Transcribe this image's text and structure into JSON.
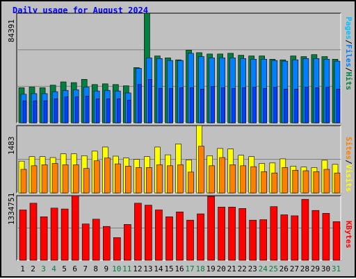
{
  "title": "Daily usage for August 2024",
  "colors": {
    "background": "#c0c0c0",
    "title": "#0000ff",
    "hits": "#008040",
    "files": "#0080ff",
    "pages": "#00c0ff",
    "visits": "#ffff00",
    "sites": "#ff8000",
    "kbytes": "#ff0000"
  },
  "chart_data": [
    {
      "type": "bar",
      "title": "Daily usage for August 2024",
      "xlabel": "",
      "ylabel_parts": [
        "Pages",
        "/",
        "Files",
        "/",
        "Hits"
      ],
      "ymax_label": "84391",
      "ylim": [
        0,
        84391
      ],
      "grid": true,
      "categories": [
        "1",
        "2",
        "3",
        "4",
        "5",
        "6",
        "7",
        "8",
        "9",
        "10",
        "11",
        "12",
        "13",
        "14",
        "15",
        "16",
        "17",
        "18",
        "19",
        "20",
        "21",
        "22",
        "23",
        "24",
        "25",
        "26",
        "27",
        "28",
        "29",
        "30",
        "31"
      ],
      "weekend_days": [
        "3",
        "4",
        "10",
        "11",
        "17",
        "18",
        "24",
        "25",
        "31"
      ],
      "series": [
        {
          "name": "Hits",
          "values": [
            27000,
            27500,
            27000,
            29000,
            31500,
            31000,
            33500,
            29500,
            30000,
            29500,
            28500,
            42500,
            84391,
            51500,
            50000,
            48500,
            56000,
            54000,
            53000,
            53000,
            53500,
            52000,
            51500,
            51500,
            49000,
            48500,
            51500,
            51000,
            52500,
            51000,
            49000
          ]
        },
        {
          "name": "Files",
          "values": [
            22000,
            22500,
            22500,
            24000,
            25000,
            25500,
            27500,
            24500,
            25000,
            24500,
            23000,
            42000,
            50000,
            49500,
            48000,
            48000,
            53500,
            51000,
            50000,
            50000,
            50000,
            49500,
            49000,
            49000,
            48000,
            47500,
            48500,
            49500,
            49500,
            49000,
            47500
          ]
        },
        {
          "name": "Pages",
          "values": [
            17000,
            17000,
            17000,
            18500,
            20000,
            20000,
            20500,
            18500,
            18500,
            18500,
            17500,
            29500,
            33500,
            26500,
            26500,
            27000,
            27000,
            26000,
            28000,
            27000,
            26500,
            27000,
            27500,
            26500,
            27500,
            26000,
            26000,
            27500,
            27000,
            27500,
            26000
          ]
        }
      ]
    },
    {
      "type": "bar",
      "ylabel_parts": [
        "Sites",
        "/",
        "Visits"
      ],
      "ymax_label": "1483",
      "ylim": [
        0,
        1483
      ],
      "grid": true,
      "categories": [
        "1",
        "2",
        "3",
        "4",
        "5",
        "6",
        "7",
        "8",
        "9",
        "10",
        "11",
        "12",
        "13",
        "14",
        "15",
        "16",
        "17",
        "18",
        "19",
        "20",
        "21",
        "22",
        "23",
        "24",
        "25",
        "26",
        "27",
        "28",
        "29",
        "30",
        "31"
      ],
      "series": [
        {
          "name": "Visits",
          "values": [
            700,
            800,
            800,
            780,
            860,
            860,
            820,
            920,
            1010,
            810,
            770,
            740,
            800,
            1010,
            840,
            1080,
            730,
            1483,
            820,
            980,
            970,
            830,
            800,
            650,
            660,
            750,
            590,
            570,
            560,
            720,
            630
          ]
        },
        {
          "name": "Sites",
          "values": [
            520,
            600,
            620,
            650,
            620,
            620,
            540,
            710,
            770,
            640,
            590,
            560,
            560,
            620,
            600,
            620,
            460,
            1030,
            600,
            780,
            620,
            600,
            580,
            470,
            440,
            560,
            500,
            490,
            470,
            520,
            440
          ]
        }
      ]
    },
    {
      "type": "bar",
      "ylabel_parts": [
        "KBytes"
      ],
      "ymax_label": "1334751",
      "ylim": [
        0,
        1334751
      ],
      "grid": true,
      "categories": [
        "1",
        "2",
        "3",
        "4",
        "5",
        "6",
        "7",
        "8",
        "9",
        "10",
        "11",
        "12",
        "13",
        "14",
        "15",
        "16",
        "17",
        "18",
        "19",
        "20",
        "21",
        "22",
        "23",
        "24",
        "25",
        "26",
        "27",
        "28",
        "29",
        "30",
        "31"
      ],
      "series": [
        {
          "name": "KBytes",
          "values": [
            1040000,
            1180000,
            900000,
            1080000,
            1060000,
            1334751,
            750000,
            850000,
            700000,
            470000,
            740000,
            1180000,
            1140000,
            1040000,
            900000,
            1000000,
            830000,
            960000,
            1320000,
            1100000,
            1100000,
            1070000,
            830000,
            840000,
            1110000,
            940000,
            920000,
            1260000,
            1030000,
            970000,
            800000
          ]
        }
      ]
    }
  ]
}
